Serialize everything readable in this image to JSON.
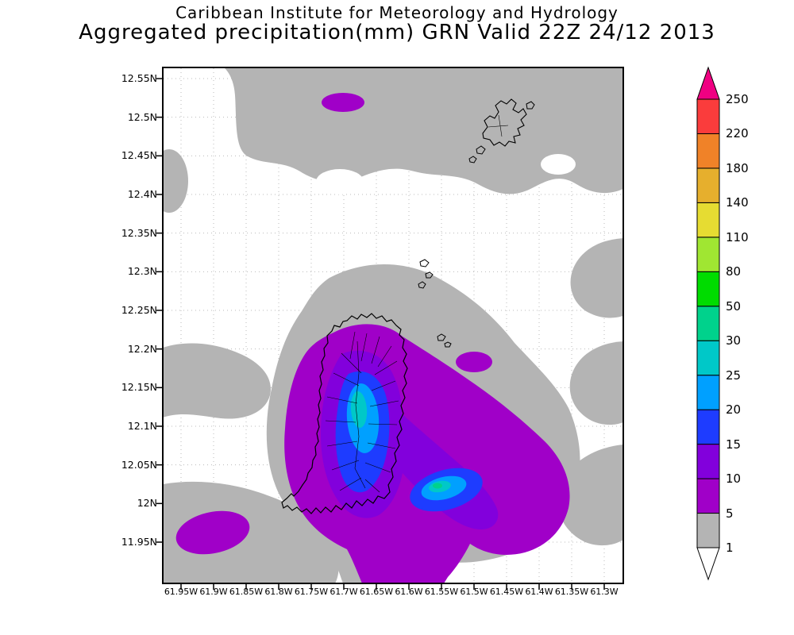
{
  "title": {
    "line1": "Caribbean Institute for Meteorology and Hydrology",
    "line2": "Aggregated precipitation(mm) GRN Valid 22Z 24/12 2013"
  },
  "chart_data": {
    "type": "heatmap",
    "title": "Caribbean Institute for Meteorology and Hydrology",
    "subtitle": "Aggregated precipitation(mm) GRN Valid 22Z 24/12 2013",
    "variable": "Aggregated precipitation",
    "units": "mm",
    "domain_label": "GRN",
    "valid_time": "22Z 24/12 2013",
    "grid": true,
    "legend_position": "right",
    "x_axis": {
      "ticks": [
        "61.95W",
        "61.9W",
        "61.85W",
        "61.8W",
        "61.75W",
        "61.7W",
        "61.65W",
        "61.6W",
        "61.55W",
        "61.5W",
        "61.45W",
        "61.4W",
        "61.35W",
        "61.3W"
      ],
      "range": [
        "61.95W",
        "61.3W"
      ]
    },
    "y_axis": {
      "ticks": [
        "12.55N",
        "12.5N",
        "12.45N",
        "12.4N",
        "12.35N",
        "12.3N",
        "12.25N",
        "12.2N",
        "12.15N",
        "12.1N",
        "12.05N",
        "12N",
        "11.95N"
      ],
      "range": [
        "11.95N",
        "12.55N"
      ]
    },
    "colorbar": {
      "levels": [
        1,
        5,
        10,
        15,
        20,
        25,
        30,
        50,
        80,
        110,
        140,
        180,
        220,
        250
      ],
      "colors_bottom_to_top": [
        "#ffffff",
        "#b4b4b4",
        "#a000c8",
        "#8200dc",
        "#1e3cff",
        "#00a0ff",
        "#00c8c8",
        "#00d28c",
        "#00dc00",
        "#a0e632",
        "#e6dc32",
        "#e6af2d",
        "#f08228",
        "#fa3c3c",
        "#f00082"
      ]
    },
    "features": [
      {
        "name": "grenada-core-max",
        "description": "Precipitation maximum 25-30 mm over central Grenada",
        "value_range_mm": "25-30"
      },
      {
        "name": "southeast-offshore-max",
        "description": "Secondary maximum 25-50 mm southeast of Grenada near 12.02N 61.55W",
        "value_range_mm": "25-50"
      },
      {
        "name": "northern-purple-cell",
        "description": "Small 5-10 mm cell near 12.5N 61.7W",
        "value_range_mm": "5-10"
      },
      {
        "name": "southwest-purple-cell",
        "description": "Small 5-10 mm cell near 11.97N 61.9W",
        "value_range_mm": "5-10"
      },
      {
        "name": "background",
        "description": "Broad 1-5 mm (gray) areas across the domain",
        "value_range_mm": "1-5"
      }
    ]
  }
}
